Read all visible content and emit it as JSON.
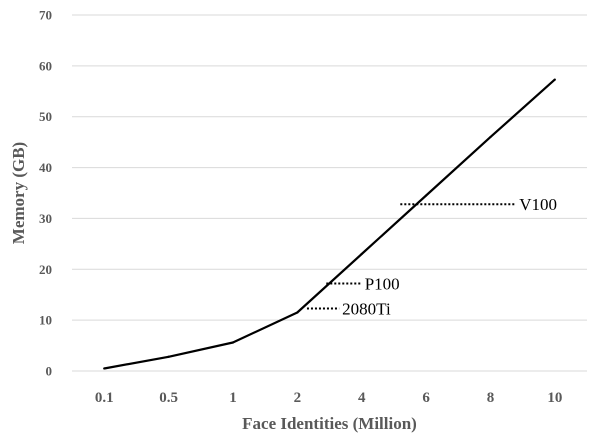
{
  "chart_data": {
    "type": "line",
    "xlabel": "Face Identities (Million)",
    "ylabel": "Memory (GB)",
    "categories": [
      "0.1",
      "0.5",
      "1",
      "2",
      "4",
      "6",
      "8",
      "10"
    ],
    "series": [
      {
        "values": [
          0.5,
          2.8,
          5.6,
          11.5,
          23.0,
          34.5,
          46.0,
          57.3
        ],
        "color": "#000000"
      }
    ],
    "ylim": [
      0,
      70
    ],
    "yticks": [
      0,
      10,
      20,
      30,
      40,
      50,
      60,
      70
    ],
    "grid": "horizontal",
    "gridColor": "#d9d9d9",
    "reference_lines": [
      {
        "label": "V100",
        "value": 32.8,
        "from_category": 4.6,
        "to_category": 6.4
      },
      {
        "label": "P100",
        "value": 17.2,
        "from_category": 3.45,
        "to_category": 4.0
      },
      {
        "label": "2080Ti",
        "value": 12.3,
        "from_category": 3.15,
        "to_category": 3.65
      }
    ]
  }
}
